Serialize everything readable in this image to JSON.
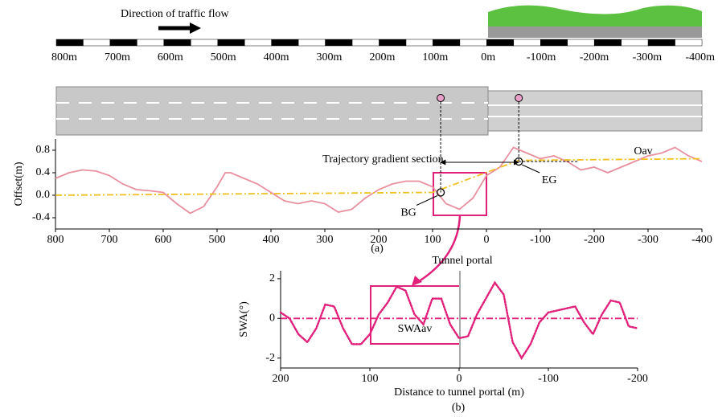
{
  "direction": "Direction of traffic flow",
  "scale_bar": {
    "labels": [
      "800m",
      "700m",
      "600m",
      "500m",
      "400m",
      "300m",
      "200m",
      "100m",
      "0m",
      "-100m",
      "-200m",
      "-300m",
      "-400m"
    ]
  },
  "chart_data": [
    {
      "type": "line",
      "label": "(a)",
      "ylabel": "Offset(m)",
      "xlim": [
        800,
        -400
      ],
      "xticks": [
        800,
        700,
        600,
        500,
        400,
        300,
        200,
        100,
        0,
        -100,
        -200,
        -300,
        -400
      ],
      "ylim": [
        -0.6,
        1.0
      ],
      "yticks": [
        -0.4,
        {
          "value": 0,
          "label": "0.0"
        },
        0.4,
        0.8
      ],
      "series": [
        {
          "color": "#e8909f",
          "style": "solid",
          "x": [
            800,
            775,
            750,
            725,
            700,
            675,
            650,
            625,
            600,
            575,
            550,
            525,
            500,
            485,
            475,
            450,
            425,
            400,
            375,
            350,
            325,
            300,
            275,
            250,
            225,
            200,
            175,
            150,
            125,
            100,
            75,
            50,
            25,
            0,
            -25,
            -50,
            -75,
            -100,
            -125,
            -150,
            -175,
            -200,
            -225,
            -250,
            -275,
            -300,
            -325,
            -350,
            -375,
            -400
          ],
          "values": [
            0.3,
            0.4,
            0.45,
            0.43,
            0.35,
            0.2,
            0.1,
            0.08,
            0.05,
            -0.15,
            -0.32,
            -0.2,
            0.15,
            0.4,
            0.4,
            0.3,
            0.2,
            0.05,
            -0.1,
            -0.15,
            -0.1,
            -0.15,
            -0.3,
            -0.25,
            -0.05,
            0.1,
            0.2,
            0.25,
            0.25,
            0.15,
            -0.15,
            -0.25,
            -0.05,
            0.35,
            0.5,
            0.85,
            0.75,
            0.65,
            0.7,
            0.6,
            0.45,
            0.5,
            0.4,
            0.5,
            0.6,
            0.7,
            0.75,
            0.85,
            0.7,
            0.6
          ]
        },
        {
          "name": "Oav",
          "color": "#f0c020",
          "style": "dashdot",
          "x": [
            800,
            100,
            -60,
            -400
          ],
          "values": [
            0,
            0.05,
            0.62,
            0.65
          ]
        }
      ],
      "markers": [
        {
          "label": "BG",
          "x": 85,
          "y": 0.05
        },
        {
          "label": "EG",
          "x": -60,
          "y": 0.6
        }
      ],
      "section_label": "Trajectory gradient section",
      "portal_label": "Tunnel portal"
    },
    {
      "type": "dotted",
      "label": "(b)",
      "ylabel": "SWA(°)",
      "xlabel": "Distance to tunnel portal (m)",
      "xlim": [
        200,
        -200
      ],
      "xticks": [
        200,
        100,
        0,
        -100,
        -200
      ],
      "ylim": [
        -2.5,
        2.4
      ],
      "yticks": [
        -2,
        0,
        2
      ],
      "series": [
        {
          "color": "#e0207a",
          "style": "dotted",
          "x": [
            200,
            190,
            180,
            170,
            160,
            150,
            140,
            130,
            120,
            110,
            100,
            90,
            80,
            70,
            60,
            50,
            40,
            30,
            20,
            10,
            0,
            -10,
            -20,
            -30,
            -40,
            -50,
            -60,
            -70,
            -80,
            -90,
            -100,
            -110,
            -120,
            -130,
            -140,
            -150,
            -160,
            -170,
            -180,
            -190,
            -200
          ],
          "values": [
            0.3,
            0,
            -0.8,
            -1.2,
            -0.5,
            0.7,
            0.6,
            -0.5,
            -1.3,
            -1.3,
            -0.8,
            0.2,
            0.8,
            1.6,
            1.4,
            0.2,
            -0.3,
            1.0,
            1.0,
            -0.3,
            -1.0,
            -0.9,
            0.2,
            1.0,
            1.8,
            1.2,
            -1.2,
            -2.0,
            -1.3,
            -0.2,
            0.3,
            0.4,
            0.5,
            0.6,
            -0.2,
            -0.8,
            0.2,
            0.9,
            0.8,
            -0.4,
            -0.5
          ]
        },
        {
          "name": "SWAav",
          "color": "#e0207a",
          "style": "dashdot",
          "x": [
            200,
            -200
          ],
          "values": [
            0,
            0
          ]
        }
      ]
    }
  ]
}
